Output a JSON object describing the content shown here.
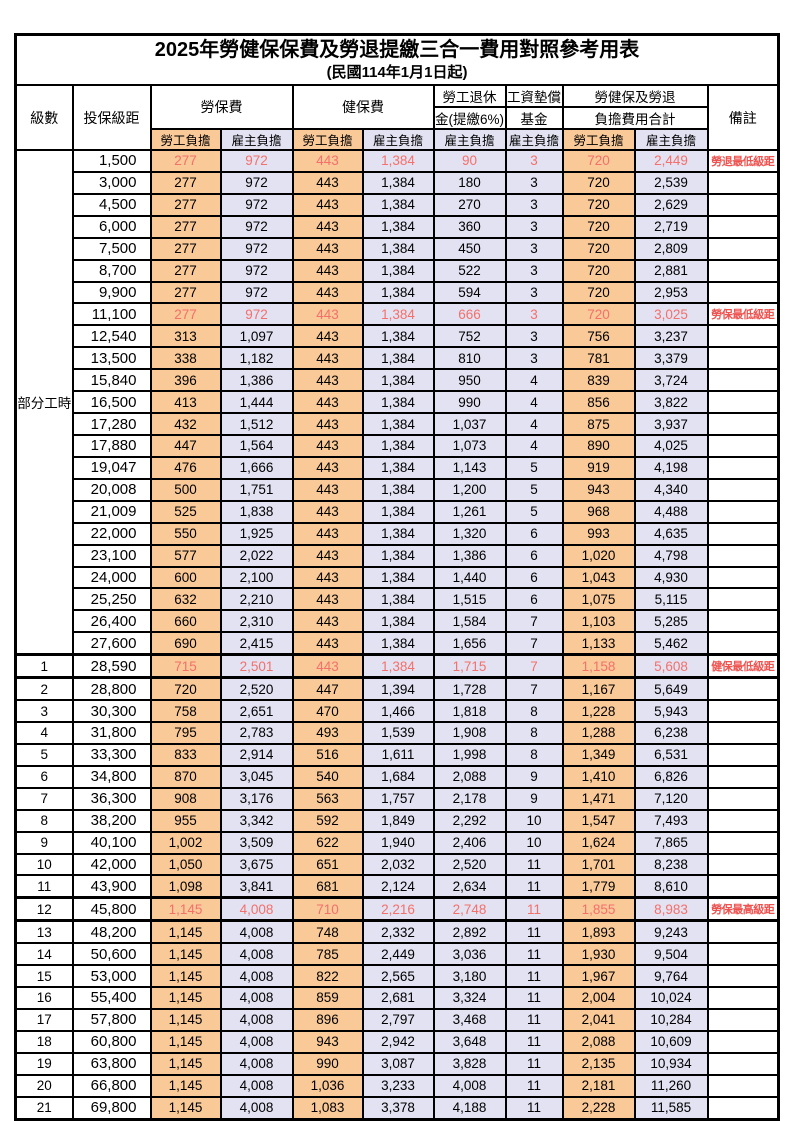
{
  "page": {
    "title": "2025年勞健保保費及勞退提繳三合一費用對照參考用表",
    "subtitle": "(民國114年1月1日起)"
  },
  "header": {
    "level": "級數",
    "bracket": "投保級距",
    "labor": "勞保費",
    "health": "健保費",
    "pension_line1": "勞工退休",
    "pension_line2": "金(提繳6%)",
    "fund_line1": "工資墊償",
    "fund_line2": "基金",
    "total_line1": "勞健保及勞退",
    "total_line2": "負擔費用合計",
    "remark": "備註",
    "employee": "勞工負擔",
    "employer": "雇主負擔"
  },
  "part_time_label": "部分工時",
  "colors": {
    "employee_column_bg": "#f9c998",
    "employer_column_bg": "#e2e2f2",
    "highlight_number_text": "#f4706b",
    "remark_text": "#ee5350",
    "grid_border": "#000000"
  },
  "rows": [
    {
      "level": "",
      "bracket": "1,500",
      "labor_emp": "277",
      "labor_er": "972",
      "health_emp": "443",
      "health_er": "1,384",
      "pension_er": "90",
      "fund_er": "3",
      "total_emp": "720",
      "total_er": "2,449",
      "remark": "勞退最低級距",
      "highlight": true
    },
    {
      "level": "",
      "bracket": "3,000",
      "labor_emp": "277",
      "labor_er": "972",
      "health_emp": "443",
      "health_er": "1,384",
      "pension_er": "180",
      "fund_er": "3",
      "total_emp": "720",
      "total_er": "2,539",
      "remark": "",
      "highlight": false
    },
    {
      "level": "",
      "bracket": "4,500",
      "labor_emp": "277",
      "labor_er": "972",
      "health_emp": "443",
      "health_er": "1,384",
      "pension_er": "270",
      "fund_er": "3",
      "total_emp": "720",
      "total_er": "2,629",
      "remark": "",
      "highlight": false
    },
    {
      "level": "",
      "bracket": "6,000",
      "labor_emp": "277",
      "labor_er": "972",
      "health_emp": "443",
      "health_er": "1,384",
      "pension_er": "360",
      "fund_er": "3",
      "total_emp": "720",
      "total_er": "2,719",
      "remark": "",
      "highlight": false
    },
    {
      "level": "",
      "bracket": "7,500",
      "labor_emp": "277",
      "labor_er": "972",
      "health_emp": "443",
      "health_er": "1,384",
      "pension_er": "450",
      "fund_er": "3",
      "total_emp": "720",
      "total_er": "2,809",
      "remark": "",
      "highlight": false
    },
    {
      "level": "",
      "bracket": "8,700",
      "labor_emp": "277",
      "labor_er": "972",
      "health_emp": "443",
      "health_er": "1,384",
      "pension_er": "522",
      "fund_er": "3",
      "total_emp": "720",
      "total_er": "2,881",
      "remark": "",
      "highlight": false
    },
    {
      "level": "",
      "bracket": "9,900",
      "labor_emp": "277",
      "labor_er": "972",
      "health_emp": "443",
      "health_er": "1,384",
      "pension_er": "594",
      "fund_er": "3",
      "total_emp": "720",
      "total_er": "2,953",
      "remark": "",
      "highlight": false
    },
    {
      "level": "",
      "bracket": "11,100",
      "labor_emp": "277",
      "labor_er": "972",
      "health_emp": "443",
      "health_er": "1,384",
      "pension_er": "666",
      "fund_er": "3",
      "total_emp": "720",
      "total_er": "3,025",
      "remark": "勞保最低級距",
      "highlight": true
    },
    {
      "level": "",
      "bracket": "12,540",
      "labor_emp": "313",
      "labor_er": "1,097",
      "health_emp": "443",
      "health_er": "1,384",
      "pension_er": "752",
      "fund_er": "3",
      "total_emp": "756",
      "total_er": "3,237",
      "remark": "",
      "highlight": false
    },
    {
      "level": "",
      "bracket": "13,500",
      "labor_emp": "338",
      "labor_er": "1,182",
      "health_emp": "443",
      "health_er": "1,384",
      "pension_er": "810",
      "fund_er": "3",
      "total_emp": "781",
      "total_er": "3,379",
      "remark": "",
      "highlight": false
    },
    {
      "level": "",
      "bracket": "15,840",
      "labor_emp": "396",
      "labor_er": "1,386",
      "health_emp": "443",
      "health_er": "1,384",
      "pension_er": "950",
      "fund_er": "4",
      "total_emp": "839",
      "total_er": "3,724",
      "remark": "",
      "highlight": false
    },
    {
      "level": "",
      "bracket": "16,500",
      "labor_emp": "413",
      "labor_er": "1,444",
      "health_emp": "443",
      "health_er": "1,384",
      "pension_er": "990",
      "fund_er": "4",
      "total_emp": "856",
      "total_er": "3,822",
      "remark": "",
      "highlight": false
    },
    {
      "level": "",
      "bracket": "17,280",
      "labor_emp": "432",
      "labor_er": "1,512",
      "health_emp": "443",
      "health_er": "1,384",
      "pension_er": "1,037",
      "fund_er": "4",
      "total_emp": "875",
      "total_er": "3,937",
      "remark": "",
      "highlight": false
    },
    {
      "level": "",
      "bracket": "17,880",
      "labor_emp": "447",
      "labor_er": "1,564",
      "health_emp": "443",
      "health_er": "1,384",
      "pension_er": "1,073",
      "fund_er": "4",
      "total_emp": "890",
      "total_er": "4,025",
      "remark": "",
      "highlight": false
    },
    {
      "level": "",
      "bracket": "19,047",
      "labor_emp": "476",
      "labor_er": "1,666",
      "health_emp": "443",
      "health_er": "1,384",
      "pension_er": "1,143",
      "fund_er": "5",
      "total_emp": "919",
      "total_er": "4,198",
      "remark": "",
      "highlight": false
    },
    {
      "level": "",
      "bracket": "20,008",
      "labor_emp": "500",
      "labor_er": "1,751",
      "health_emp": "443",
      "health_er": "1,384",
      "pension_er": "1,200",
      "fund_er": "5",
      "total_emp": "943",
      "total_er": "4,340",
      "remark": "",
      "highlight": false
    },
    {
      "level": "",
      "bracket": "21,009",
      "labor_emp": "525",
      "labor_er": "1,838",
      "health_emp": "443",
      "health_er": "1,384",
      "pension_er": "1,261",
      "fund_er": "5",
      "total_emp": "968",
      "total_er": "4,488",
      "remark": "",
      "highlight": false
    },
    {
      "level": "",
      "bracket": "22,000",
      "labor_emp": "550",
      "labor_er": "1,925",
      "health_emp": "443",
      "health_er": "1,384",
      "pension_er": "1,320",
      "fund_er": "6",
      "total_emp": "993",
      "total_er": "4,635",
      "remark": "",
      "highlight": false
    },
    {
      "level": "",
      "bracket": "23,100",
      "labor_emp": "577",
      "labor_er": "2,022",
      "health_emp": "443",
      "health_er": "1,384",
      "pension_er": "1,386",
      "fund_er": "6",
      "total_emp": "1,020",
      "total_er": "4,798",
      "remark": "",
      "highlight": false
    },
    {
      "level": "",
      "bracket": "24,000",
      "labor_emp": "600",
      "labor_er": "2,100",
      "health_emp": "443",
      "health_er": "1,384",
      "pension_er": "1,440",
      "fund_er": "6",
      "total_emp": "1,043",
      "total_er": "4,930",
      "remark": "",
      "highlight": false
    },
    {
      "level": "",
      "bracket": "25,250",
      "labor_emp": "632",
      "labor_er": "2,210",
      "health_emp": "443",
      "health_er": "1,384",
      "pension_er": "1,515",
      "fund_er": "6",
      "total_emp": "1,075",
      "total_er": "5,115",
      "remark": "",
      "highlight": false
    },
    {
      "level": "",
      "bracket": "26,400",
      "labor_emp": "660",
      "labor_er": "2,310",
      "health_emp": "443",
      "health_er": "1,384",
      "pension_er": "1,584",
      "fund_er": "7",
      "total_emp": "1,103",
      "total_er": "5,285",
      "remark": "",
      "highlight": false
    },
    {
      "level": "",
      "bracket": "27,600",
      "labor_emp": "690",
      "labor_er": "2,415",
      "health_emp": "443",
      "health_er": "1,384",
      "pension_er": "1,656",
      "fund_er": "7",
      "total_emp": "1,133",
      "total_er": "5,462",
      "remark": "",
      "highlight": false
    },
    {
      "level": "1",
      "bracket": "28,590",
      "labor_emp": "715",
      "labor_er": "2,501",
      "health_emp": "443",
      "health_er": "1,384",
      "pension_er": "1,715",
      "fund_er": "7",
      "total_emp": "1,158",
      "total_er": "5,608",
      "remark": "健保最低級距",
      "highlight": true
    },
    {
      "level": "2",
      "bracket": "28,800",
      "labor_emp": "720",
      "labor_er": "2,520",
      "health_emp": "447",
      "health_er": "1,394",
      "pension_er": "1,728",
      "fund_er": "7",
      "total_emp": "1,167",
      "total_er": "5,649",
      "remark": "",
      "highlight": false
    },
    {
      "level": "3",
      "bracket": "30,300",
      "labor_emp": "758",
      "labor_er": "2,651",
      "health_emp": "470",
      "health_er": "1,466",
      "pension_er": "1,818",
      "fund_er": "8",
      "total_emp": "1,228",
      "total_er": "5,943",
      "remark": "",
      "highlight": false
    },
    {
      "level": "4",
      "bracket": "31,800",
      "labor_emp": "795",
      "labor_er": "2,783",
      "health_emp": "493",
      "health_er": "1,539",
      "pension_er": "1,908",
      "fund_er": "8",
      "total_emp": "1,288",
      "total_er": "6,238",
      "remark": "",
      "highlight": false
    },
    {
      "level": "5",
      "bracket": "33,300",
      "labor_emp": "833",
      "labor_er": "2,914",
      "health_emp": "516",
      "health_er": "1,611",
      "pension_er": "1,998",
      "fund_er": "8",
      "total_emp": "1,349",
      "total_er": "6,531",
      "remark": "",
      "highlight": false
    },
    {
      "level": "6",
      "bracket": "34,800",
      "labor_emp": "870",
      "labor_er": "3,045",
      "health_emp": "540",
      "health_er": "1,684",
      "pension_er": "2,088",
      "fund_er": "9",
      "total_emp": "1,410",
      "total_er": "6,826",
      "remark": "",
      "highlight": false
    },
    {
      "level": "7",
      "bracket": "36,300",
      "labor_emp": "908",
      "labor_er": "3,176",
      "health_emp": "563",
      "health_er": "1,757",
      "pension_er": "2,178",
      "fund_er": "9",
      "total_emp": "1,471",
      "total_er": "7,120",
      "remark": "",
      "highlight": false
    },
    {
      "level": "8",
      "bracket": "38,200",
      "labor_emp": "955",
      "labor_er": "3,342",
      "health_emp": "592",
      "health_er": "1,849",
      "pension_er": "2,292",
      "fund_er": "10",
      "total_emp": "1,547",
      "total_er": "7,493",
      "remark": "",
      "highlight": false
    },
    {
      "level": "9",
      "bracket": "40,100",
      "labor_emp": "1,002",
      "labor_er": "3,509",
      "health_emp": "622",
      "health_er": "1,940",
      "pension_er": "2,406",
      "fund_er": "10",
      "total_emp": "1,624",
      "total_er": "7,865",
      "remark": "",
      "highlight": false
    },
    {
      "level": "10",
      "bracket": "42,000",
      "labor_emp": "1,050",
      "labor_er": "3,675",
      "health_emp": "651",
      "health_er": "2,032",
      "pension_er": "2,520",
      "fund_er": "11",
      "total_emp": "1,701",
      "total_er": "8,238",
      "remark": "",
      "highlight": false
    },
    {
      "level": "11",
      "bracket": "43,900",
      "labor_emp": "1,098",
      "labor_er": "3,841",
      "health_emp": "681",
      "health_er": "2,124",
      "pension_er": "2,634",
      "fund_er": "11",
      "total_emp": "1,779",
      "total_er": "8,610",
      "remark": "",
      "highlight": false
    },
    {
      "level": "12",
      "bracket": "45,800",
      "labor_emp": "1,145",
      "labor_er": "4,008",
      "health_emp": "710",
      "health_er": "2,216",
      "pension_er": "2,748",
      "fund_er": "11",
      "total_emp": "1,855",
      "total_er": "8,983",
      "remark": "勞保最高級距",
      "highlight": true
    },
    {
      "level": "13",
      "bracket": "48,200",
      "labor_emp": "1,145",
      "labor_er": "4,008",
      "health_emp": "748",
      "health_er": "2,332",
      "pension_er": "2,892",
      "fund_er": "11",
      "total_emp": "1,893",
      "total_er": "9,243",
      "remark": "",
      "highlight": false
    },
    {
      "level": "14",
      "bracket": "50,600",
      "labor_emp": "1,145",
      "labor_er": "4,008",
      "health_emp": "785",
      "health_er": "2,449",
      "pension_er": "3,036",
      "fund_er": "11",
      "total_emp": "1,930",
      "total_er": "9,504",
      "remark": "",
      "highlight": false
    },
    {
      "level": "15",
      "bracket": "53,000",
      "labor_emp": "1,145",
      "labor_er": "4,008",
      "health_emp": "822",
      "health_er": "2,565",
      "pension_er": "3,180",
      "fund_er": "11",
      "total_emp": "1,967",
      "total_er": "9,764",
      "remark": "",
      "highlight": false
    },
    {
      "level": "16",
      "bracket": "55,400",
      "labor_emp": "1,145",
      "labor_er": "4,008",
      "health_emp": "859",
      "health_er": "2,681",
      "pension_er": "3,324",
      "fund_er": "11",
      "total_emp": "2,004",
      "total_er": "10,024",
      "remark": "",
      "highlight": false
    },
    {
      "level": "17",
      "bracket": "57,800",
      "labor_emp": "1,145",
      "labor_er": "4,008",
      "health_emp": "896",
      "health_er": "2,797",
      "pension_er": "3,468",
      "fund_er": "11",
      "total_emp": "2,041",
      "total_er": "10,284",
      "remark": "",
      "highlight": false
    },
    {
      "level": "18",
      "bracket": "60,800",
      "labor_emp": "1,145",
      "labor_er": "4,008",
      "health_emp": "943",
      "health_er": "2,942",
      "pension_er": "3,648",
      "fund_er": "11",
      "total_emp": "2,088",
      "total_er": "10,609",
      "remark": "",
      "highlight": false
    },
    {
      "level": "19",
      "bracket": "63,800",
      "labor_emp": "1,145",
      "labor_er": "4,008",
      "health_emp": "990",
      "health_er": "3,087",
      "pension_er": "3,828",
      "fund_er": "11",
      "total_emp": "2,135",
      "total_er": "10,934",
      "remark": "",
      "highlight": false
    },
    {
      "level": "20",
      "bracket": "66,800",
      "labor_emp": "1,145",
      "labor_er": "4,008",
      "health_emp": "1,036",
      "health_er": "3,233",
      "pension_er": "4,008",
      "fund_er": "11",
      "total_emp": "2,181",
      "total_er": "11,260",
      "remark": "",
      "highlight": false
    },
    {
      "level": "21",
      "bracket": "69,800",
      "labor_emp": "1,145",
      "labor_er": "4,008",
      "health_emp": "1,083",
      "health_er": "3,378",
      "pension_er": "4,188",
      "fund_er": "11",
      "total_emp": "2,228",
      "total_er": "11,585",
      "remark": "",
      "highlight": false
    }
  ]
}
